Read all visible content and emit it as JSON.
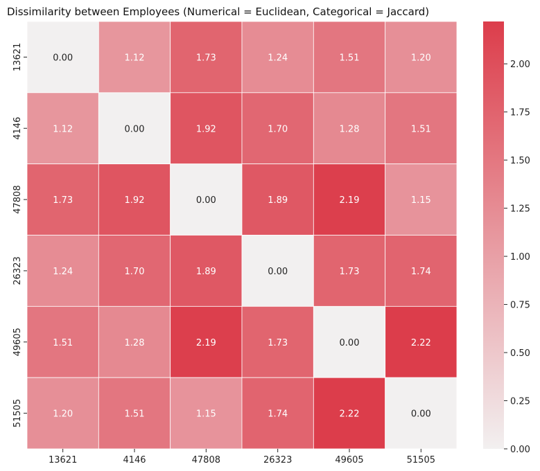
{
  "chart_data": {
    "type": "heatmap",
    "title": "Dissimilarity between Employees (Numerical = Euclidean, Categorical = Jaccard)",
    "xlabel": "",
    "ylabel": "",
    "x_categories": [
      "13621",
      "4146",
      "47808",
      "26323",
      "49605",
      "51505"
    ],
    "y_categories": [
      "13621",
      "4146",
      "47808",
      "26323",
      "49605",
      "51505"
    ],
    "values": [
      [
        0.0,
        1.12,
        1.73,
        1.24,
        1.51,
        1.2
      ],
      [
        1.12,
        0.0,
        1.92,
        1.7,
        1.28,
        1.51
      ],
      [
        1.73,
        1.92,
        0.0,
        1.89,
        2.19,
        1.15
      ],
      [
        1.24,
        1.7,
        1.89,
        0.0,
        1.73,
        1.74
      ],
      [
        1.51,
        1.28,
        2.19,
        1.73,
        0.0,
        2.22
      ],
      [
        1.2,
        1.51,
        1.15,
        1.74,
        2.22,
        0.0
      ]
    ],
    "value_range": [
      0.0,
      2.22
    ],
    "colorbar": {
      "ticks": [
        "0.00",
        "0.25",
        "0.50",
        "0.75",
        "1.00",
        "1.25",
        "1.50",
        "1.75",
        "2.00"
      ],
      "tick_values": [
        0.0,
        0.25,
        0.5,
        0.75,
        1.0,
        1.25,
        1.5,
        1.75,
        2.0
      ],
      "low_color": "#f2f0f0",
      "high_color": "#dc3d4b"
    },
    "annotations_format": "2 decimals",
    "grid": false
  }
}
